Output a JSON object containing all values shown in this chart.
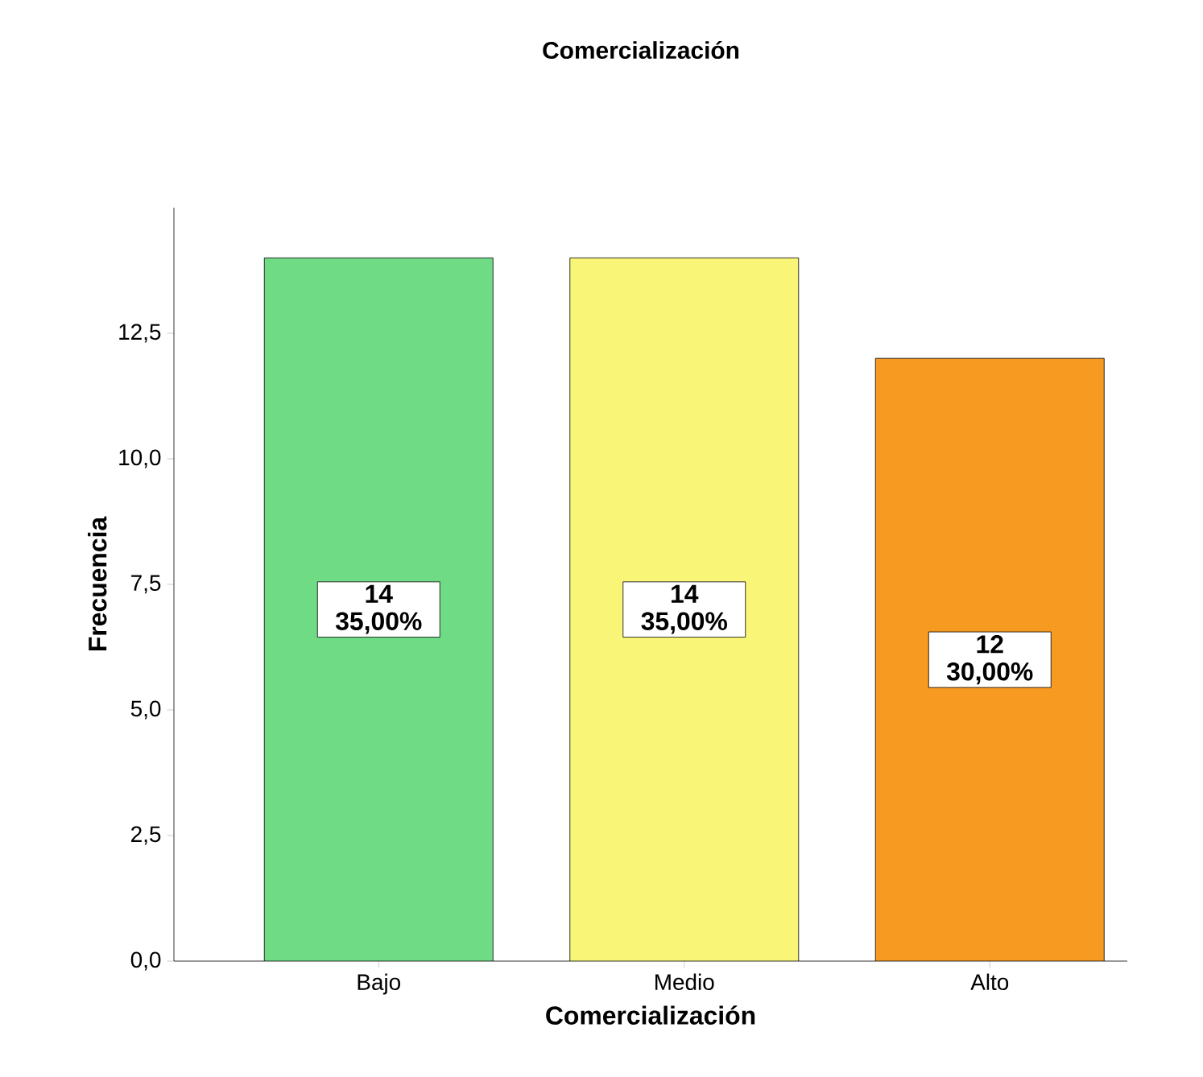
{
  "chart_data": {
    "type": "bar",
    "title": "Comercialización",
    "xlabel": "Comercialización",
    "ylabel": "Frecuencia",
    "categories": [
      "Bajo",
      "Medio",
      "Alto"
    ],
    "values": [
      14,
      14,
      12
    ],
    "colors": [
      "#6fdc85",
      "#f8f577",
      "#f79a21"
    ],
    "value_labels": [
      "14 35,00%",
      "14 35,00%",
      "12 30,00%"
    ],
    "ylim": [
      0,
      15
    ],
    "yticks": [
      {
        "value": 0,
        "label": "0,0"
      },
      {
        "value": 2.5,
        "label": "2,5"
      },
      {
        "value": 5,
        "label": "5,0"
      },
      {
        "value": 7.5,
        "label": "7,5"
      },
      {
        "value": 10,
        "label": "10,0"
      },
      {
        "value": 12.5,
        "label": "12,5"
      }
    ],
    "grid": false
  }
}
